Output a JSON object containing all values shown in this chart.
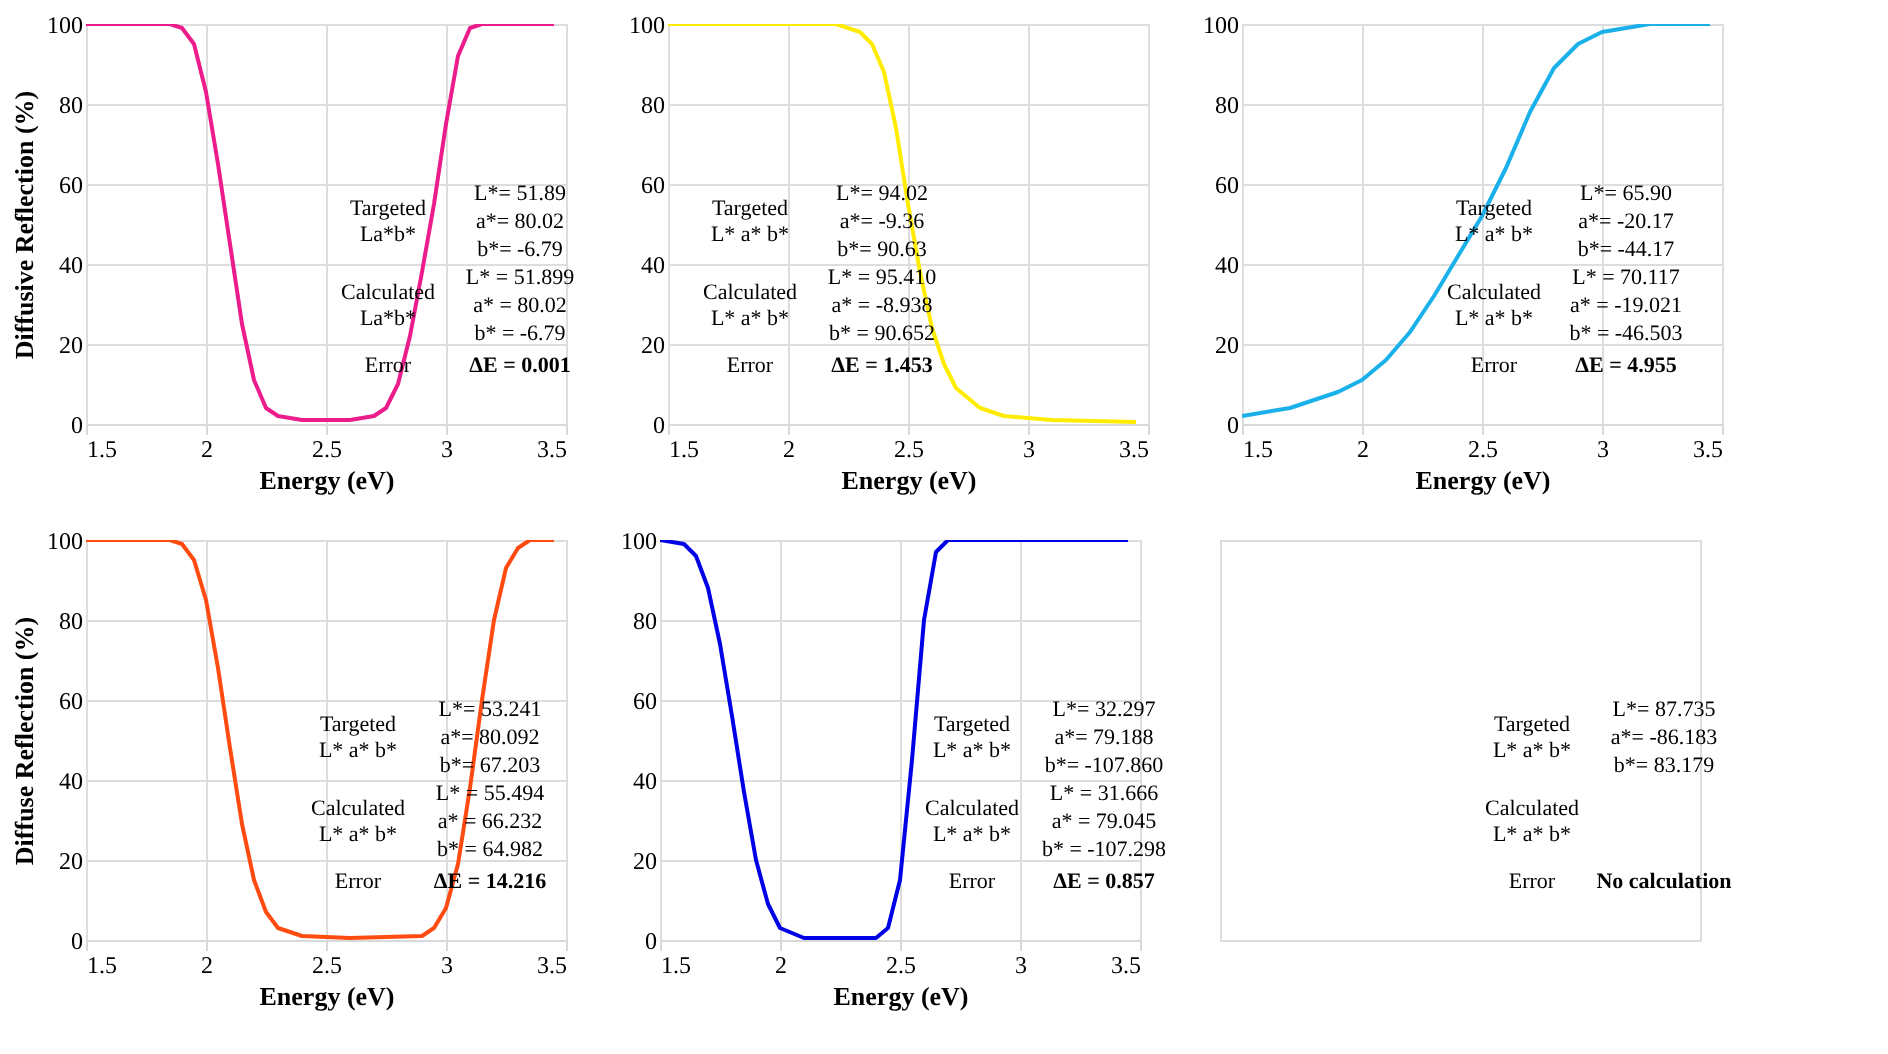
{
  "chart_data": [
    {
      "type": "line",
      "xlabel": "Energy (eV)",
      "ylabel": "Diffusive Reflection (%)",
      "xlim": [
        1.5,
        3.5
      ],
      "ylim": [
        0,
        100
      ],
      "xticks": [
        1.5,
        2,
        2.5,
        3,
        3.5
      ],
      "yticks": [
        0,
        20,
        40,
        60,
        80,
        100
      ],
      "grid": true,
      "x": [
        1.5,
        1.85,
        1.9,
        1.95,
        2.0,
        2.05,
        2.1,
        2.15,
        2.2,
        2.25,
        2.3,
        2.4,
        2.6,
        2.7,
        2.75,
        2.8,
        2.85,
        2.9,
        2.95,
        3.0,
        3.05,
        3.1,
        3.15,
        3.45
      ],
      "series": [
        {
          "color": "#ec1c8c",
          "values": [
            100,
            100,
            99,
            95,
            83,
            65,
            45,
            25,
            11,
            4,
            2,
            1,
            1,
            2,
            4,
            10,
            22,
            38,
            55,
            75,
            92,
            99,
            100,
            100
          ]
        }
      ],
      "annotations": [
        "Targeted\nLa*b*",
        "L*= 51.89",
        "a*= 80.02",
        "b*= -6.79",
        "Calculated\nLa*b*",
        "L* = 51.899",
        "a* = 80.02",
        "b* = -6.79",
        "Error",
        "ΔE = 0.001"
      ]
    },
    {
      "type": "line",
      "xlabel": "Energy (eV)",
      "xlim": [
        1.5,
        3.5
      ],
      "ylim": [
        0,
        100
      ],
      "xticks": [
        1.5,
        2,
        2.5,
        3,
        3.5
      ],
      "yticks": [
        0,
        20,
        40,
        60,
        80,
        100
      ],
      "grid": true,
      "x": [
        1.5,
        2.2,
        2.3,
        2.35,
        2.4,
        2.45,
        2.5,
        2.55,
        2.6,
        2.65,
        2.7,
        2.8,
        2.9,
        3.1,
        3.45
      ],
      "series": [
        {
          "color": "#ffec00",
          "values": [
            100,
            100,
            98,
            95,
            88,
            74,
            55,
            38,
            24,
            15,
            9,
            4,
            2,
            1,
            0.5
          ]
        }
      ],
      "annotations": [
        "Targeted\nL* a* b*",
        "L*= 94.02",
        "a*= -9.36",
        "b*= 90.63",
        "Calculated\nL* a* b*",
        "L* = 95.410",
        "a* = -8.938",
        "b* = 90.652",
        "Error",
        "ΔE = 1.453"
      ]
    },
    {
      "type": "line",
      "xlabel": "Energy (eV)",
      "xlim": [
        1.5,
        3.5
      ],
      "ylim": [
        0,
        100
      ],
      "xticks": [
        1.5,
        2,
        2.5,
        3,
        3.5
      ],
      "yticks": [
        0,
        20,
        40,
        60,
        80,
        100
      ],
      "grid": true,
      "x": [
        1.5,
        1.7,
        1.9,
        2.0,
        2.1,
        2.2,
        2.3,
        2.4,
        2.5,
        2.6,
        2.7,
        2.8,
        2.9,
        3.0,
        3.2,
        3.45
      ],
      "series": [
        {
          "color": "#1ab0ea",
          "values": [
            2,
            4,
            8,
            11,
            16,
            23,
            32,
            42,
            52,
            64,
            78,
            89,
            95,
            98,
            100,
            100
          ]
        }
      ],
      "annotations": [
        "Targeted\nL* a* b*",
        "L*= 65.90",
        "a*= -20.17",
        "b*= -44.17",
        "Calculated\nL* a* b*",
        "L* = 70.117",
        "a* = -19.021",
        "b* = -46.503",
        "Error",
        "ΔE = 4.955"
      ]
    },
    {
      "type": "line",
      "xlabel": "Energy (eV)",
      "ylabel": "Diffuse Reflection (%)",
      "xlim": [
        1.5,
        3.5
      ],
      "ylim": [
        0,
        100
      ],
      "xticks": [
        1.5,
        2,
        2.5,
        3,
        3.5
      ],
      "yticks": [
        0,
        20,
        40,
        60,
        80,
        100
      ],
      "grid": true,
      "x": [
        1.5,
        1.85,
        1.9,
        1.95,
        2.0,
        2.05,
        2.1,
        2.15,
        2.2,
        2.25,
        2.3,
        2.4,
        2.6,
        2.9,
        2.95,
        3.0,
        3.05,
        3.1,
        3.15,
        3.2,
        3.25,
        3.3,
        3.35,
        3.45
      ],
      "series": [
        {
          "color": "#ff4a10",
          "values": [
            100,
            100,
            99,
            95,
            85,
            68,
            48,
            29,
            15,
            7,
            3,
            1,
            0.5,
            1,
            3,
            8,
            19,
            38,
            60,
            80,
            93,
            98,
            100,
            100
          ]
        }
      ],
      "annotations": [
        "Targeted\nL* a* b*",
        "L*= 53.241",
        "a*= 80.092",
        "b*= 67.203",
        "Calculated\nL* a* b*",
        "L* = 55.494",
        "a* = 66.232",
        "b* = 64.982",
        "Error",
        "ΔE = 14.216"
      ]
    },
    {
      "type": "line",
      "xlabel": "Energy (eV)",
      "xlim": [
        1.5,
        3.5
      ],
      "ylim": [
        0,
        100
      ],
      "xticks": [
        1.5,
        2,
        2.5,
        3,
        3.5
      ],
      "yticks": [
        0,
        20,
        40,
        60,
        80,
        100
      ],
      "grid": true,
      "x": [
        1.5,
        1.6,
        1.65,
        1.7,
        1.75,
        1.8,
        1.85,
        1.9,
        1.95,
        2.0,
        2.1,
        2.4,
        2.45,
        2.5,
        2.55,
        2.6,
        2.65,
        2.7,
        3.45
      ],
      "series": [
        {
          "color": "#0000e6",
          "values": [
            100,
            99,
            96,
            88,
            74,
            56,
            37,
            20,
            9,
            3,
            0.5,
            0.5,
            3,
            15,
            45,
            80,
            97,
            100,
            100
          ]
        }
      ],
      "annotations": [
        "Targeted\nL* a* b*",
        "L*= 32.297",
        "a*= 79.188",
        "b*= -107.860",
        "Calculated\nL* a* b*",
        "L* = 31.666",
        "a* = 79.045",
        "b* = -107.298",
        "Error",
        "ΔE = 0.857"
      ]
    },
    {
      "type": "other",
      "annotations": [
        "Targeted\nL* a* b*",
        "L*= 87.735",
        "a*= -86.183",
        "b*= 83.179",
        "Calculated\nL* a* b*",
        "Error",
        "No calculation"
      ]
    }
  ]
}
